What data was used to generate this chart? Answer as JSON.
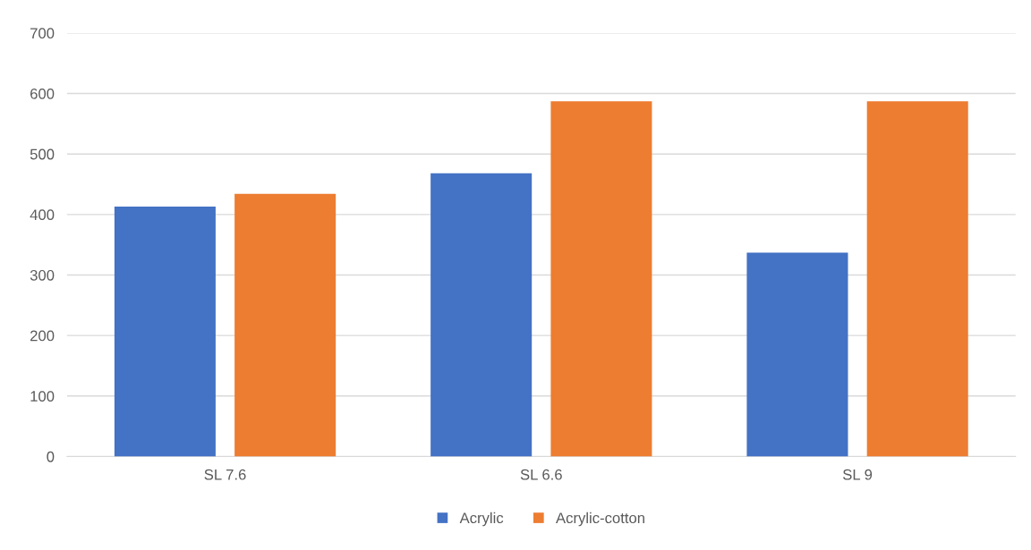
{
  "chart_data": {
    "type": "bar",
    "categories": [
      "SL 7.6",
      "SL 6.6",
      "SL 9"
    ],
    "series": [
      {
        "name": "Acrylic",
        "color": "#4472c4",
        "values": [
          413,
          468,
          337
        ]
      },
      {
        "name": "Acrylic-cotton",
        "color": "#ed7d31",
        "values": [
          434,
          587,
          587
        ]
      }
    ],
    "ylim": [
      0,
      700
    ],
    "yticks": [
      0,
      100,
      200,
      300,
      400,
      500,
      600,
      700
    ],
    "grid": "y",
    "legend": "bottom"
  }
}
